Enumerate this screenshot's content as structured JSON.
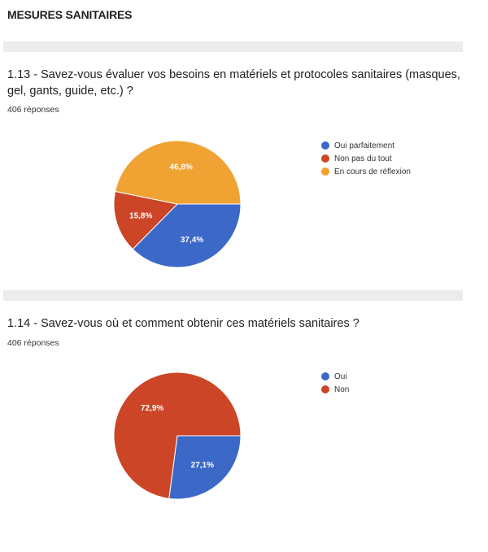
{
  "section_title": "MESURES SANITAIRES",
  "chart_data": [
    {
      "type": "pie",
      "title": "1.13 - Savez-vous évaluer vos besoins en matériels et protocoles sanitaires (masques, gel, gants, guide, etc.) ?",
      "responses": "406 réponses",
      "categories": [
        "Oui parfaitement",
        "Non pas du tout",
        "En cours de réflexion"
      ],
      "values": [
        37.4,
        15.8,
        46.8
      ],
      "labels": [
        "37,4%",
        "15,8%",
        "46,8%"
      ],
      "colors": [
        "#3c68c8",
        "#cc4526",
        "#f0a233"
      ],
      "legend": "right"
    },
    {
      "type": "pie",
      "title": "1.14 - Savez-vous où et comment obtenir ces matériels sanitaires ?",
      "responses": "406 réponses",
      "categories": [
        "Oui",
        "Non"
      ],
      "values": [
        27.1,
        72.9
      ],
      "labels": [
        "27,1%",
        "72,9%"
      ],
      "colors": [
        "#3c68c8",
        "#cc4526"
      ],
      "legend": "right"
    }
  ]
}
